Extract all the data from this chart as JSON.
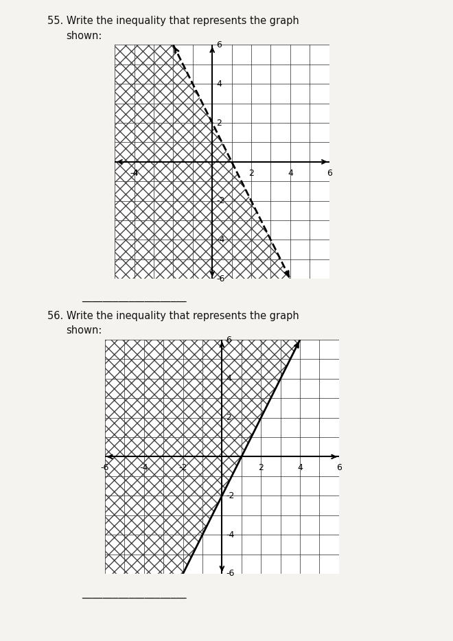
{
  "graph55": {
    "slope": -2,
    "intercept": 2,
    "line_start_x": -2,
    "line_end_x": 4,
    "shade_left_of_line": true,
    "line_style": "dashed",
    "xlim": [
      -5,
      6
    ],
    "ylim": [
      -6,
      6
    ],
    "xlabel_vals": [
      -4,
      2,
      4,
      6
    ],
    "ylabel_vals": [
      2,
      4,
      6
    ],
    "ylabel_neg_vals": [
      -2,
      -4,
      -6
    ]
  },
  "graph56": {
    "slope": 2,
    "intercept": -2,
    "line_start_x": -4,
    "line_end_x": 4,
    "shade_left_of_line": true,
    "line_style": "solid",
    "xlim": [
      -6,
      6
    ],
    "ylim": [
      -6,
      6
    ],
    "xlabel_vals": [
      2,
      4,
      6
    ],
    "xlabel_neg_vals": [
      -6,
      -4,
      -2
    ],
    "ylabel_vals": [
      2,
      4,
      6
    ],
    "ylabel_neg_vals": [
      -2,
      -4,
      -6
    ]
  },
  "page_bg": "#f5f3ef",
  "graph_bg": "#ffffff",
  "hatch_color": "#444444",
  "grid_color": "#222222",
  "axis_color": "#000000",
  "text_color": "#111111",
  "answer_line": "____________________",
  "font_size_label": 9,
  "font_size_title": 10.5
}
